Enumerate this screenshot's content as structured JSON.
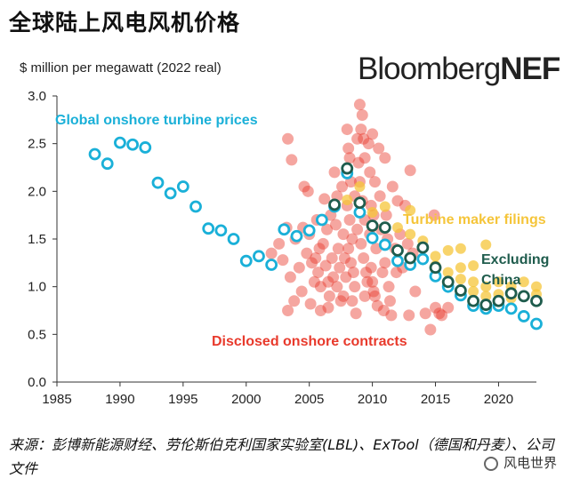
{
  "title": "全球陆上风电风机价格",
  "brand": {
    "part1": "Bloomberg",
    "part2": "NEF"
  },
  "source": "来源：彭博新能源财经、劳伦斯伯克利国家实验室(LBL)、ExTool（德国和丹麦）、公司文件",
  "wechat": "风电世界",
  "chart_data": {
    "type": "scatter",
    "title": "",
    "ylabel": "$ million per megawatt (2022 real)",
    "xlabel": "",
    "xlim": [
      1985,
      2023
    ],
    "ylim": [
      0,
      3.0
    ],
    "xticks": [
      1985,
      1990,
      1995,
      2000,
      2005,
      2010,
      2015,
      2020
    ],
    "yticks": [
      "0.0",
      "0.5",
      "1.0",
      "1.5",
      "2.0",
      "2.5",
      "3.0"
    ],
    "grid": false,
    "colors": {
      "global": "#1ab0d8",
      "china_excl": "#1f5c4d",
      "contracts": "#e83a2c",
      "filings": "#f5c53a"
    },
    "annotations": {
      "global": "Global onshore turbine prices",
      "filings": "Turbine maker filings",
      "china_excl_1": "Excluding",
      "china_excl_2": "China",
      "contracts": "Disclosed onshore contracts"
    },
    "series": [
      {
        "key": "global",
        "name": "Global onshore turbine prices",
        "points": [
          [
            1988,
            2.39
          ],
          [
            1989,
            2.29
          ],
          [
            1990,
            2.51
          ],
          [
            1991,
            2.49
          ],
          [
            1992,
            2.46
          ],
          [
            1993,
            2.09
          ],
          [
            1994,
            1.98
          ],
          [
            1995,
            2.05
          ],
          [
            1996,
            1.84
          ],
          [
            1997,
            1.61
          ],
          [
            1998,
            1.59
          ],
          [
            1999,
            1.5
          ],
          [
            2000,
            1.27
          ],
          [
            2001,
            1.32
          ],
          [
            2002,
            1.23
          ],
          [
            2003,
            1.6
          ],
          [
            2004,
            1.53
          ],
          [
            2005,
            1.59
          ],
          [
            2006,
            1.7
          ],
          [
            2007,
            1.84
          ],
          [
            2008,
            2.19
          ],
          [
            2009,
            1.78
          ],
          [
            2010,
            1.51
          ],
          [
            2011,
            1.44
          ],
          [
            2012,
            1.27
          ],
          [
            2013,
            1.23
          ],
          [
            2014,
            1.29
          ],
          [
            2015,
            1.11
          ],
          [
            2016,
            1.0
          ],
          [
            2017,
            0.91
          ],
          [
            2018,
            0.8
          ],
          [
            2019,
            0.77
          ],
          [
            2020,
            0.8
          ],
          [
            2021,
            0.77
          ],
          [
            2022,
            0.69
          ],
          [
            2023,
            0.61
          ]
        ]
      },
      {
        "key": "china_excl",
        "name": "Excluding China",
        "points": [
          [
            2007,
            1.86
          ],
          [
            2008,
            2.24
          ],
          [
            2009,
            1.88
          ],
          [
            2010,
            1.64
          ],
          [
            2011,
            1.62
          ],
          [
            2012,
            1.38
          ],
          [
            2013,
            1.3
          ],
          [
            2014,
            1.41
          ],
          [
            2015,
            1.2
          ],
          [
            2016,
            1.05
          ],
          [
            2017,
            0.96
          ],
          [
            2018,
            0.85
          ],
          [
            2019,
            0.81
          ],
          [
            2020,
            0.85
          ],
          [
            2021,
            0.93
          ],
          [
            2022,
            0.9
          ],
          [
            2023,
            0.85
          ]
        ]
      },
      {
        "key": "filings",
        "name": "Turbine maker filings",
        "points": [
          [
            2008,
            1.91
          ],
          [
            2009,
            2.05
          ],
          [
            2010,
            1.78
          ],
          [
            2011,
            1.84
          ],
          [
            2012,
            1.62
          ],
          [
            2013,
            1.8
          ],
          [
            2013,
            1.55
          ],
          [
            2014,
            1.48
          ],
          [
            2015,
            1.32
          ],
          [
            2015,
            1.22
          ],
          [
            2016,
            1.38
          ],
          [
            2016,
            1.15
          ],
          [
            2017,
            1.4
          ],
          [
            2017,
            1.2
          ],
          [
            2017,
            1.08
          ],
          [
            2018,
            1.22
          ],
          [
            2018,
            1.05
          ],
          [
            2018,
            0.95
          ],
          [
            2019,
            1.44
          ],
          [
            2019,
            1.0
          ],
          [
            2019,
            0.9
          ],
          [
            2020,
            1.05
          ],
          [
            2020,
            0.92
          ],
          [
            2021,
            1.0
          ],
          [
            2021,
            0.88
          ],
          [
            2022,
            1.05
          ],
          [
            2022,
            0.9
          ],
          [
            2023,
            1.0
          ],
          [
            2023,
            0.92
          ]
        ]
      },
      {
        "key": "contracts",
        "name": "Disclosed onshore contracts",
        "points": [
          [
            2002,
            1.35
          ],
          [
            2002.6,
            1.45
          ],
          [
            2002.9,
            1.28
          ],
          [
            2003.2,
            1.62
          ],
          [
            2003.5,
            1.1
          ],
          [
            2003.3,
            2.55
          ],
          [
            2003.6,
            2.33
          ],
          [
            2003.9,
            1.5
          ],
          [
            2003.8,
            0.85
          ],
          [
            2003.3,
            0.75
          ],
          [
            2004.2,
            1.2
          ],
          [
            2004.5,
            1.62
          ],
          [
            2004.4,
            0.95
          ],
          [
            2004.8,
            1.35
          ],
          [
            2004.6,
            2.05
          ],
          [
            2004.9,
            2.0
          ],
          [
            2005.0,
            1.55
          ],
          [
            2005.2,
            1.25
          ],
          [
            2005.4,
            1.05
          ],
          [
            2005.1,
            0.82
          ],
          [
            2005.6,
            1.7
          ],
          [
            2005.8,
            1.4
          ],
          [
            2005.5,
            1.3
          ],
          [
            2005.7,
            1.15
          ],
          [
            2005.9,
            1.0
          ],
          [
            2005.9,
            0.75
          ],
          [
            2006.2,
            1.92
          ],
          [
            2006.4,
            1.6
          ],
          [
            2006.1,
            1.45
          ],
          [
            2006.3,
            1.22
          ],
          [
            2006.5,
            1.05
          ],
          [
            2006.6,
            0.9
          ],
          [
            2006.7,
            1.75
          ],
          [
            2006.8,
            1.3
          ],
          [
            2006.9,
            1.1
          ],
          [
            2006.5,
            0.78
          ],
          [
            2007.0,
            2.2
          ],
          [
            2007.2,
            1.95
          ],
          [
            2007.1,
            1.65
          ],
          [
            2007.3,
            1.4
          ],
          [
            2007.4,
            1.2
          ],
          [
            2007.2,
            1.0
          ],
          [
            2007.5,
            0.85
          ],
          [
            2007.6,
            2.05
          ],
          [
            2007.7,
            1.55
          ],
          [
            2007.8,
            1.3
          ],
          [
            2007.9,
            1.1
          ],
          [
            2007.7,
            0.9
          ],
          [
            2008.0,
            2.65
          ],
          [
            2008.1,
            2.45
          ],
          [
            2008.2,
            2.35
          ],
          [
            2008.3,
            2.1
          ],
          [
            2008.0,
            1.85
          ],
          [
            2008.2,
            1.7
          ],
          [
            2008.4,
            1.5
          ],
          [
            2008.1,
            1.4
          ],
          [
            2008.3,
            1.25
          ],
          [
            2008.5,
            1.15
          ],
          [
            2008.6,
            1.0
          ],
          [
            2008.4,
            0.85
          ],
          [
            2008.7,
            0.72
          ],
          [
            2008.8,
            2.55
          ],
          [
            2008.9,
            2.3
          ],
          [
            2008.6,
            1.95
          ],
          [
            2008.8,
            1.6
          ],
          [
            2009.0,
            2.91
          ],
          [
            2009.2,
            2.8
          ],
          [
            2009.1,
            2.65
          ],
          [
            2009.3,
            2.55
          ],
          [
            2009.4,
            2.35
          ],
          [
            2009.0,
            2.1
          ],
          [
            2009.2,
            1.9
          ],
          [
            2009.4,
            1.7
          ],
          [
            2009.1,
            1.45
          ],
          [
            2009.3,
            1.3
          ],
          [
            2009.5,
            1.15
          ],
          [
            2009.6,
            1.05
          ],
          [
            2009.4,
            0.9
          ],
          [
            2009.7,
            2.5
          ],
          [
            2009.8,
            2.2
          ],
          [
            2009.9,
            1.85
          ],
          [
            2009.8,
            1.55
          ],
          [
            2009.9,
            1.2
          ],
          [
            2010.0,
            2.6
          ],
          [
            2010.2,
            2.1
          ],
          [
            2010.1,
            1.75
          ],
          [
            2010.3,
            1.4
          ],
          [
            2010.0,
            1.05
          ],
          [
            2010.1,
            0.95
          ],
          [
            2010.2,
            0.9
          ],
          [
            2010.4,
            0.8
          ],
          [
            2010.5,
            2.45
          ],
          [
            2010.6,
            1.95
          ],
          [
            2010.7,
            1.6
          ],
          [
            2010.8,
            1.15
          ],
          [
            2010.9,
            0.75
          ],
          [
            2011.0,
            2.35
          ],
          [
            2011.1,
            1.75
          ],
          [
            2011.2,
            1.5
          ],
          [
            2011.0,
            1.25
          ],
          [
            2011.3,
            1.0
          ],
          [
            2011.4,
            0.85
          ],
          [
            2011.5,
            0.7
          ],
          [
            2011.6,
            2.05
          ],
          [
            2011.8,
            1.4
          ],
          [
            2011.9,
            1.15
          ],
          [
            2012.0,
            1.9
          ],
          [
            2012.2,
            1.55
          ],
          [
            2012.4,
            1.2
          ],
          [
            2012.6,
            1.85
          ],
          [
            2012.8,
            1.45
          ],
          [
            2012.9,
            0.7
          ],
          [
            2013.0,
            2.22
          ],
          [
            2013.2,
            1.35
          ],
          [
            2013.4,
            0.95
          ],
          [
            2014.2,
            0.72
          ],
          [
            2014.6,
            0.55
          ],
          [
            2014.9,
            1.75
          ],
          [
            2015.0,
            0.78
          ],
          [
            2015.3,
            0.72
          ],
          [
            2015.5,
            0.7
          ],
          [
            2016.0,
            0.78
          ]
        ]
      }
    ]
  }
}
